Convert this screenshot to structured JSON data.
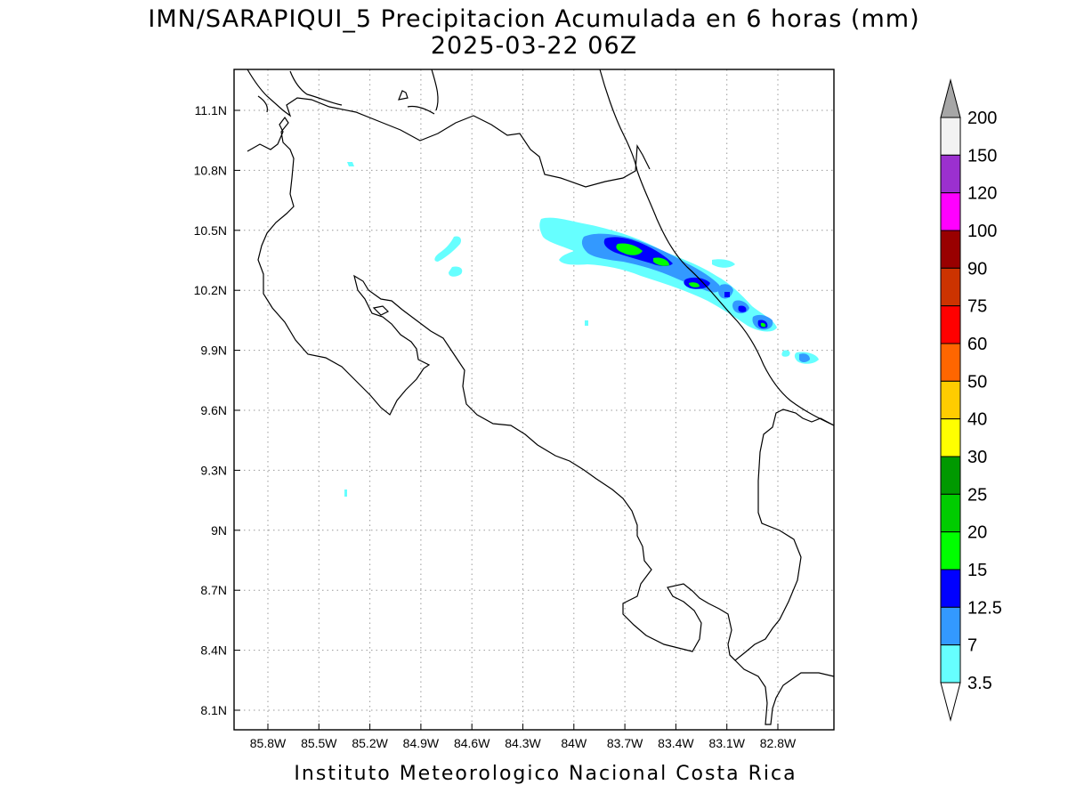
{
  "title": {
    "line1": "IMN/SARAPIQUI_5 Precipitacion Acumulada en 6 horas (mm)",
    "line2": "2025-03-22 06Z"
  },
  "footer": "Instituto Meteorologico Nacional Costa Rica",
  "axes": {
    "lon_ticks": [
      "85.8W",
      "85.5W",
      "85.2W",
      "84.9W",
      "84.6W",
      "84.3W",
      "84W",
      "83.7W",
      "83.4W",
      "83.1W",
      "82.8W"
    ],
    "lat_ticks": [
      "11.1N",
      "10.8N",
      "10.5N",
      "10.2N",
      "9.9N",
      "9.6N",
      "9.3N",
      "9N",
      "8.7N",
      "8.4N",
      "8.1N"
    ],
    "grid": true
  },
  "colorbar": {
    "labels": [
      "200",
      "150",
      "120",
      "100",
      "90",
      "75",
      "60",
      "50",
      "40",
      "30",
      "25",
      "20",
      "15",
      "12.5",
      "7",
      "3.5"
    ],
    "colors": [
      "#f2f2f2",
      "#9b30cf",
      "#ff00ff",
      "#990000",
      "#cc3300",
      "#ff0000",
      "#ff6600",
      "#ffcc00",
      "#ffff00",
      "#009900",
      "#00cc00",
      "#00ff00",
      "#0000ff",
      "#3399ff",
      "#66ffff"
    ],
    "over_color": "#a6a6a6",
    "under_color": "#ffffff"
  }
}
